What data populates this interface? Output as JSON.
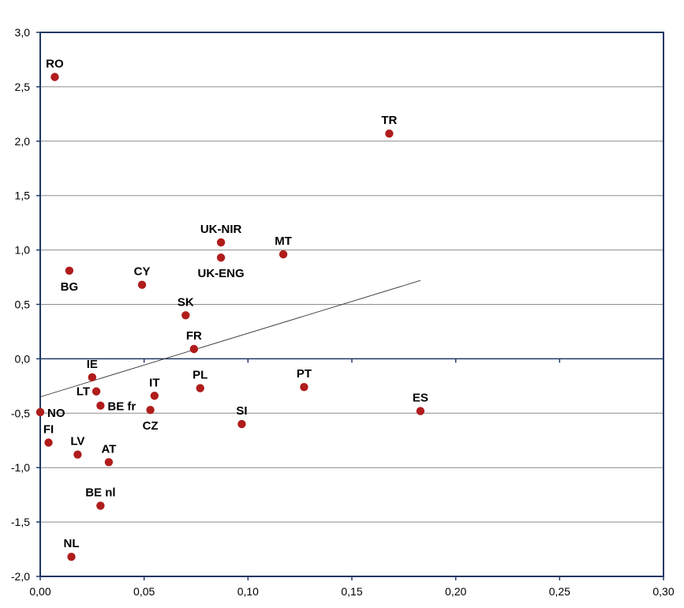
{
  "chart_data": {
    "type": "scatter",
    "title": "",
    "xlabel": "",
    "ylabel": "",
    "xlim": [
      0,
      0.3
    ],
    "ylim": [
      -2.0,
      3.0
    ],
    "x_ticks": [
      0,
      0.05,
      0.1,
      0.15,
      0.2,
      0.25,
      0.3
    ],
    "y_ticks": [
      -2.0,
      -1.5,
      -1.0,
      -0.5,
      0.0,
      0.5,
      1.0,
      1.5,
      2.0,
      2.5,
      3.0
    ],
    "x_tick_labels": [
      "0,00",
      "0,05",
      "0,10",
      "0,15",
      "0,20",
      "0,25",
      "0,30"
    ],
    "y_tick_labels": [
      "-2,0",
      "-1,5",
      "-1,0",
      "-0,5",
      "0,0",
      "0,5",
      "1,0",
      "1,5",
      "2,0",
      "2,5",
      "3,0"
    ],
    "grid": "horizontal",
    "marker_color": "#b01c1c",
    "frame_color": "#1f3864",
    "trendline": {
      "x": [
        0.0,
        0.183
      ],
      "y": [
        -0.35,
        0.72
      ],
      "color": "#333333"
    },
    "points": [
      {
        "label": "RO",
        "x": 0.007,
        "y": 2.59,
        "label_pos": "above"
      },
      {
        "label": "TR",
        "x": 0.168,
        "y": 2.07,
        "label_pos": "above"
      },
      {
        "label": "UK-NIR",
        "x": 0.087,
        "y": 1.07,
        "label_pos": "above"
      },
      {
        "label": "MT",
        "x": 0.117,
        "y": 0.96,
        "label_pos": "above"
      },
      {
        "label": "UK-ENG",
        "x": 0.087,
        "y": 0.93,
        "label_pos": "below"
      },
      {
        "label": "BG",
        "x": 0.014,
        "y": 0.81,
        "label_pos": "below"
      },
      {
        "label": "CY",
        "x": 0.049,
        "y": 0.68,
        "label_pos": "above"
      },
      {
        "label": "SK",
        "x": 0.07,
        "y": 0.4,
        "label_pos": "above"
      },
      {
        "label": "FR",
        "x": 0.074,
        "y": 0.09,
        "label_pos": "above"
      },
      {
        "label": "IE",
        "x": 0.025,
        "y": -0.17,
        "label_pos": "above"
      },
      {
        "label": "PL",
        "x": 0.077,
        "y": -0.27,
        "label_pos": "above"
      },
      {
        "label": "PT",
        "x": 0.127,
        "y": -0.26,
        "label_pos": "above"
      },
      {
        "label": "LT",
        "x": 0.027,
        "y": -0.3,
        "label_pos": "left"
      },
      {
        "label": "IT",
        "x": 0.055,
        "y": -0.34,
        "label_pos": "above"
      },
      {
        "label": "BE fr",
        "x": 0.029,
        "y": -0.43,
        "label_pos": "right"
      },
      {
        "label": "CZ",
        "x": 0.053,
        "y": -0.47,
        "label_pos": "below"
      },
      {
        "label": "ES",
        "x": 0.183,
        "y": -0.48,
        "label_pos": "above"
      },
      {
        "label": "NO",
        "x": 0.0,
        "y": -0.49,
        "label_pos": "right"
      },
      {
        "label": "SI",
        "x": 0.097,
        "y": -0.6,
        "label_pos": "above"
      },
      {
        "label": "FI",
        "x": 0.004,
        "y": -0.77,
        "label_pos": "above"
      },
      {
        "label": "LV",
        "x": 0.018,
        "y": -0.88,
        "label_pos": "above"
      },
      {
        "label": "AT",
        "x": 0.033,
        "y": -0.95,
        "label_pos": "above"
      },
      {
        "label": "BE nl",
        "x": 0.029,
        "y": -1.35,
        "label_pos": "above"
      },
      {
        "label": "NL",
        "x": 0.015,
        "y": -1.82,
        "label_pos": "above"
      }
    ]
  }
}
